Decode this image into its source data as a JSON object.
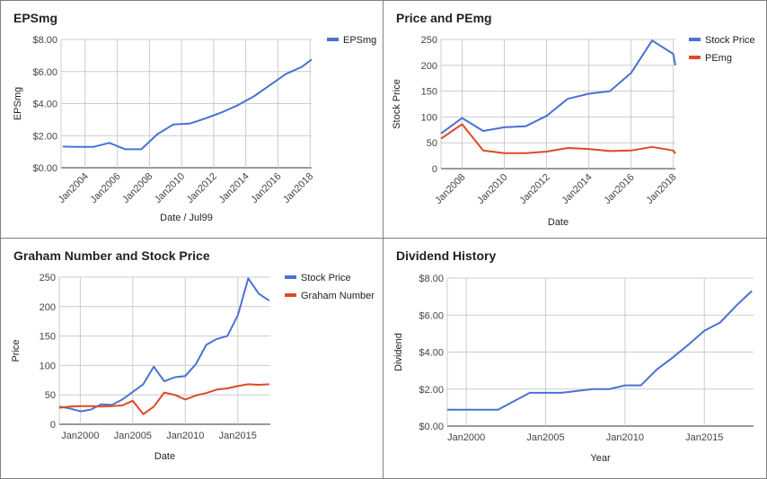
{
  "colors": {
    "blue": "#4a72d2",
    "red": "#dc4a26",
    "grid": "#cccccc",
    "axis": "#333333"
  },
  "chart_data": [
    {
      "type": "line",
      "title": "EPSmg",
      "xlabel": "Date / Jul99",
      "ylabel": "EPSmg",
      "x_ticks": [
        "Jan2004",
        "Jan2006",
        "Jan2008",
        "Jan2010",
        "Jan2012",
        "Jan2014",
        "Jan2016",
        "Jan2018"
      ],
      "x_tick_values": [
        2004,
        2006,
        2008,
        2010,
        2012,
        2014,
        2016,
        2018
      ],
      "x_range": [
        2002.5,
        2018.1
      ],
      "ylim": [
        0,
        8
      ],
      "y_ticks": [
        "$0.00",
        "$2.00",
        "$4.00",
        "$6.00",
        "$8.00"
      ],
      "y_tick_values": [
        0,
        2,
        4,
        6,
        8
      ],
      "legend_position": "right",
      "series": [
        {
          "name": "EPSmg",
          "color": "#4a72d2",
          "x": [
            2002.6,
            2003.5,
            2004.5,
            2005.5,
            2006.5,
            2007.5,
            2008.5,
            2009.5,
            2010.5,
            2011.5,
            2012.5,
            2013.5,
            2014.5,
            2015.5,
            2016.5,
            2017.5,
            2018.1
          ],
          "y": [
            1.32,
            1.3,
            1.3,
            1.55,
            1.15,
            1.15,
            2.1,
            2.7,
            2.75,
            3.08,
            3.45,
            3.9,
            4.45,
            5.15,
            5.85,
            6.3,
            6.75
          ]
        }
      ]
    },
    {
      "type": "line",
      "title": "Price and PEmg",
      "xlabel": "Date",
      "ylabel": "Stock Price",
      "x_ticks": [
        "Jan2008",
        "Jan2010",
        "Jan2012",
        "Jan2014",
        "Jan2016",
        "Jan2018"
      ],
      "x_tick_values": [
        2008,
        2010,
        2012,
        2014,
        2016,
        2018
      ],
      "x_range": [
        2007.0,
        2018.1
      ],
      "ylim": [
        0,
        250
      ],
      "y_ticks": [
        "0",
        "50",
        "100",
        "150",
        "200",
        "250"
      ],
      "y_tick_values": [
        0,
        50,
        100,
        150,
        200,
        250
      ],
      "legend_position": "right",
      "series": [
        {
          "name": "Stock Price",
          "color": "#4a72d2",
          "x": [
            2007.0,
            2008.0,
            2009.0,
            2010.0,
            2011.0,
            2012.0,
            2013.0,
            2014.0,
            2015.0,
            2016.0,
            2017.0,
            2018.0,
            2018.1
          ],
          "y": [
            68,
            98,
            73,
            80,
            82,
            102,
            135,
            145,
            150,
            185,
            248,
            222,
            200
          ]
        },
        {
          "name": "PEmg",
          "color": "#dc4a26",
          "x": [
            2007.0,
            2008.0,
            2009.0,
            2010.0,
            2011.0,
            2012.0,
            2013.0,
            2014.0,
            2015.0,
            2016.0,
            2017.0,
            2018.0,
            2018.1
          ],
          "y": [
            58,
            86,
            35,
            30,
            30,
            33,
            40,
            38,
            34,
            35,
            42,
            35,
            29
          ]
        }
      ]
    },
    {
      "type": "line",
      "title": "Graham Number and Stock Price",
      "xlabel": "Date",
      "ylabel": "Price",
      "x_ticks": [
        "Jan2000",
        "Jan2005",
        "Jan2010",
        "Jan2015"
      ],
      "x_tick_values": [
        2000,
        2005,
        2010,
        2015
      ],
      "x_range": [
        1998.0,
        2018.1
      ],
      "ylim": [
        0,
        250
      ],
      "y_ticks": [
        "0",
        "50",
        "100",
        "150",
        "200",
        "250"
      ],
      "y_tick_values": [
        0,
        50,
        100,
        150,
        200,
        250
      ],
      "legend_position": "right",
      "series": [
        {
          "name": "Stock Price",
          "color": "#4a72d2",
          "x": [
            1998.0,
            1999.0,
            2000.0,
            2001.0,
            2002.0,
            2003.0,
            2004.0,
            2005.0,
            2006.0,
            2007.0,
            2008.0,
            2009.0,
            2010.0,
            2011.0,
            2012.0,
            2013.0,
            2014.0,
            2015.0,
            2016.0,
            2017.0,
            2018.0
          ],
          "y": [
            30,
            27,
            22,
            25,
            34,
            33,
            42,
            55,
            68,
            98,
            73,
            80,
            82,
            102,
            135,
            145,
            150,
            185,
            248,
            222,
            210
          ]
        },
        {
          "name": "Graham Number",
          "color": "#dc4a26",
          "x": [
            1998.0,
            1999.0,
            2000.0,
            2001.0,
            2002.0,
            2003.0,
            2004.0,
            2005.0,
            2006.0,
            2007.0,
            2008.0,
            2009.0,
            2010.0,
            2011.0,
            2012.0,
            2013.0,
            2014.0,
            2015.0,
            2016.0,
            2017.0,
            2018.0
          ],
          "y": [
            28,
            30,
            31,
            31,
            30,
            31,
            32,
            40,
            17,
            30,
            54,
            50,
            42,
            49,
            53,
            59,
            61,
            65,
            68,
            67,
            68
          ]
        }
      ]
    },
    {
      "type": "line",
      "title": "Dividend History",
      "xlabel": "Year",
      "ylabel": "Dividend",
      "x_ticks": [
        "Jan2000",
        "Jan2005",
        "Jan2010",
        "Jan2015"
      ],
      "x_tick_values": [
        2000,
        2005,
        2010,
        2015
      ],
      "x_range": [
        1998.8,
        2018.1
      ],
      "ylim": [
        0,
        8
      ],
      "y_ticks": [
        "$0.00",
        "$2.00",
        "$4.00",
        "$6.00",
        "$8.00"
      ],
      "y_tick_values": [
        0,
        2,
        4,
        6,
        8
      ],
      "legend_position": "none",
      "series": [
        {
          "name": "",
          "color": "#4a72d2",
          "x": [
            1998.8,
            2000.0,
            2001.0,
            2002.0,
            2003.0,
            2004.0,
            2005.0,
            2006.0,
            2007.0,
            2008.0,
            2009.0,
            2010.0,
            2011.0,
            2012.0,
            2013.0,
            2014.0,
            2015.0,
            2016.0,
            2017.0,
            2018.0
          ],
          "y": [
            0.88,
            0.88,
            0.88,
            0.88,
            1.35,
            1.8,
            1.8,
            1.8,
            1.9,
            2.0,
            2.0,
            2.2,
            2.2,
            3.05,
            3.7,
            4.4,
            5.15,
            5.6,
            6.5,
            7.3
          ]
        }
      ]
    }
  ]
}
